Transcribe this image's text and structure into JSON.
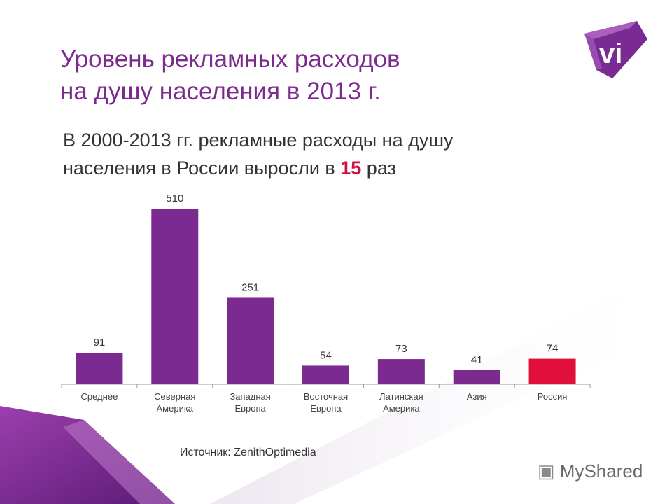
{
  "title_line1": "Уровень рекламных расходов",
  "title_line2": "на душу населения в 2013 г.",
  "subtitle_line1": "В 2000-2013 гг. рекламные расходы на душу",
  "subtitle_line2_pre": "населения в России выросли в ",
  "subtitle_highlight": "15",
  "subtitle_line2_post": " раз",
  "source": "Источник: ZenithOptimedia",
  "logo_text": "vi",
  "watermark": "MyShared",
  "colors": {
    "bar": "#7b2a8f",
    "highlight": "#e0103a",
    "title": "#7d2a8e"
  },
  "chart_data": {
    "type": "bar",
    "categories": [
      [
        "Среднее"
      ],
      [
        "Северная",
        "Америка"
      ],
      [
        "Западная",
        "Европа"
      ],
      [
        "Восточная",
        "Европа"
      ],
      [
        "Латинская",
        "Америка"
      ],
      [
        "Азия"
      ],
      [
        "Россия"
      ]
    ],
    "values": [
      91,
      510,
      251,
      54,
      73,
      41,
      74
    ],
    "highlight_index": 6,
    "ylim": [
      0,
      510
    ],
    "grid": false
  }
}
